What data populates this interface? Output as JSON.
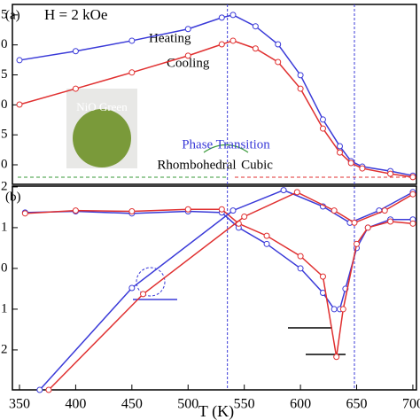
{
  "chart_data": [
    {
      "type": "line",
      "panel_label": "(a)",
      "annotations": {
        "field": "H = 2 kOe",
        "heating": "Heating",
        "cooling": "Cooling",
        "inset": "NiO Green",
        "transition": "Phase Transition",
        "low_phase": "Rhombohedral",
        "high_phase": "Cubic"
      },
      "xlim": [
        343.7,
        703.2
      ],
      "ylim": [
        -0.65,
        5.35
      ],
      "yticks": [
        {
          "value": 0,
          "label": "0"
        },
        {
          "value": 1,
          "label": "5"
        },
        {
          "value": 2,
          "label": "0"
        },
        {
          "value": 3,
          "label": "5"
        },
        {
          "value": 4,
          "label": "0"
        },
        {
          "value": 5,
          "label": "5"
        }
      ],
      "transition_lines": [
        535,
        648
      ],
      "series": [
        {
          "name": "Heating",
          "color": "#3a3ad8",
          "x": [
            350,
            400,
            450,
            500,
            530,
            540,
            560,
            580,
            600,
            620,
            635,
            645,
            655,
            680,
            700
          ],
          "values": [
            3.49,
            3.79,
            4.14,
            4.53,
            4.91,
            5.0,
            4.62,
            4.02,
            2.99,
            1.51,
            0.62,
            0.12,
            -0.06,
            -0.21,
            -0.36
          ]
        },
        {
          "name": "Cooling",
          "color": "#e03030",
          "x": [
            350,
            400,
            450,
            500,
            530,
            540,
            560,
            580,
            600,
            620,
            635,
            645,
            655,
            680,
            700
          ],
          "values": [
            2.01,
            2.54,
            3.08,
            3.64,
            4.02,
            4.14,
            3.88,
            3.43,
            2.54,
            1.21,
            0.41,
            0.06,
            -0.12,
            -0.3,
            -0.41
          ]
        }
      ]
    },
    {
      "type": "line",
      "panel_label": "(b)",
      "xlabel": "T (K)",
      "xlim": [
        343.7,
        703.2
      ],
      "xticks": [
        350,
        400,
        450,
        500,
        550,
        600,
        650,
        700
      ],
      "ylim": [
        -2.98,
        2.02
      ],
      "yticks": [
        {
          "value": 2,
          "label": "2"
        },
        {
          "value": 1,
          "label": "1"
        },
        {
          "value": 0,
          "label": "0"
        },
        {
          "value": -1,
          "label": "1"
        },
        {
          "value": -2,
          "label": "2"
        }
      ],
      "y2lim": [
        0,
        1
      ],
      "series": [
        {
          "name": "Heating",
          "color": "#3a3ad8",
          "x": [
            355,
            400,
            450,
            500,
            530,
            545,
            570,
            600,
            620,
            630,
            635,
            640,
            650,
            660,
            680,
            700
          ],
          "values": [
            1.37,
            1.4,
            1.35,
            1.4,
            1.37,
            1.0,
            0.6,
            0.0,
            -0.6,
            -1.0,
            -1.0,
            -0.5,
            0.5,
            1.0,
            1.2,
            1.2
          ]
        },
        {
          "name": "Cooling",
          "color": "#e03030",
          "x": [
            355,
            400,
            450,
            500,
            530,
            545,
            570,
            600,
            620,
            632,
            638,
            650,
            660,
            680,
            700
          ],
          "values": [
            1.35,
            1.42,
            1.4,
            1.45,
            1.45,
            1.1,
            0.8,
            0.3,
            -0.2,
            -2.17,
            -1.0,
            0.6,
            1.0,
            1.15,
            1.1
          ]
        },
        {
          "name": "Heating",
          "color": "#3a3ad8",
          "axis": "y2",
          "x": [
            368,
            450,
            540,
            585,
            620,
            644,
            670,
            700
          ],
          "values": [
            0,
            0.5,
            0.88,
            0.98,
            0.9,
            0.82,
            0.88,
            0.97
          ]
        },
        {
          "name": "Cooling",
          "color": "#e03030",
          "axis": "y2",
          "x": [
            376,
            460,
            550,
            597,
            630,
            648,
            675,
            700
          ],
          "values": [
            0,
            0.47,
            0.85,
            0.97,
            0.88,
            0.82,
            0.88,
            0.96
          ]
        }
      ]
    }
  ]
}
